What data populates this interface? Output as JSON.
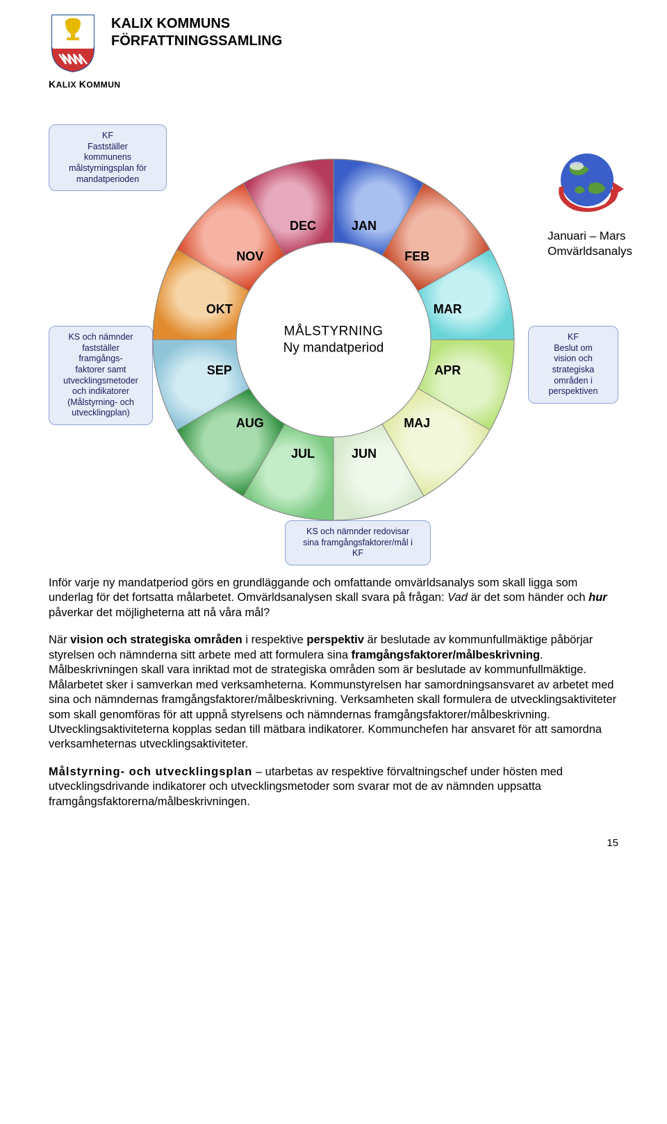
{
  "header": {
    "title_line1": "KALIX KOMMUNS",
    "title_line2": "FÖRFATTNINGSSAMLING",
    "subhead_prefix": "K",
    "subhead_rest": "ALIX ",
    "subhead_prefix2": "K",
    "subhead_rest2": "OMMUN"
  },
  "diagram": {
    "center_line1": "MÅLSTYRNING",
    "center_line2": "Ny mandatperiod",
    "months": [
      "JAN",
      "FEB",
      "MAR",
      "APR",
      "MAJ",
      "JUN",
      "JUL",
      "AUG",
      "SEP",
      "OKT",
      "NOV",
      "DEC"
    ],
    "month_colors": {
      "outer": [
        "#3a5fc8",
        "#c64a2b",
        "#69d5d9",
        "#b9e27a",
        "#e1e9a3",
        "#d7eace",
        "#79c97f",
        "#2f8f3e",
        "#8fc4d9",
        "#e18b2e",
        "#d94a2a",
        "#b63a5a"
      ],
      "inner": [
        "#a8bff0",
        "#f0b9a6",
        "#c6f1f3",
        "#e1f3c7",
        "#f3f7dc",
        "#f0f8ec",
        "#c5ecc9",
        "#a8dcae",
        "#d3ecf3",
        "#f6d5a8",
        "#f6b3a3",
        "#e7a9bd"
      ]
    },
    "callout_top_left": "KF\nFastställer\nkommunens\nmålstyrningsplan för\nmandatperioden",
    "callout_mid_left": "KS och nämnder\nfastställer\nframgångs-\nfaktorer samt\nutvecklingsmetoder\noch indikatorer\n(Målstyrning- och\nutvecklingplan)",
    "callout_right": "KF\nBeslut om\nvision och\nstrategiska\nområden i\nperspektiven",
    "callout_bottom": "KS och nämnder redovisar\nsina framgångsfaktorer/mål i\nKF",
    "side_label_line1": "Januari – Mars",
    "side_label_line2": "Omvärldsanalys"
  },
  "body": {
    "p1_a": "Inför varje ny mandatperiod görs en grundläggande och omfattande omvärldsanalys som skall ligga som underlag för det fortsatta målarbetet. Omvärldsanalysen skall svara på frågan: ",
    "p1_i1": "Vad",
    "p1_b": " är det som händer och ",
    "p1_i2": "hur",
    "p1_c": " påverkar det möjligheterna att nå våra mål?",
    "p2_a": "När ",
    "p2_b1": "vision och strategiska områden",
    "p2_b": " i respektive ",
    "p2_b2": "perspektiv",
    "p2_c": " är beslutade av kommunfullmäktige påbörjar styrelsen och nämnderna sitt arbete med att formulera sina ",
    "p2_b3": "framgångsfaktorer/målbeskrivning",
    "p2_d": ". Målbeskrivningen skall vara inriktad mot de strategiska områden som är beslutade av kommunfullmäktige. Målarbetet sker i samverkan med verksamheterna. Kommunstyrelsen har samordningsansvaret av arbetet med sina och nämndernas framgångsfaktorer/målbeskrivning. Verksamheten skall formulera de utvecklingsaktiviteter som skall genomföras för att uppnå styrelsens och nämndernas framgångsfaktorer/målbeskrivning. Utvecklingsaktiviteterna kopplas sedan till mätbara indikatorer. Kommunchefen har ansvaret för att samordna verksamheternas utvecklingsaktiviteter.",
    "p3_h": "Målstyrning- och utvecklingsplan",
    "p3_a": " – utarbetas av respektive förvaltningschef under hösten med utvecklingsdrivande indikatorer och utvecklingsmetoder som svarar mot de av nämnden uppsatta framgångsfaktorerna/målbeskrivningen."
  },
  "page_number": "15"
}
